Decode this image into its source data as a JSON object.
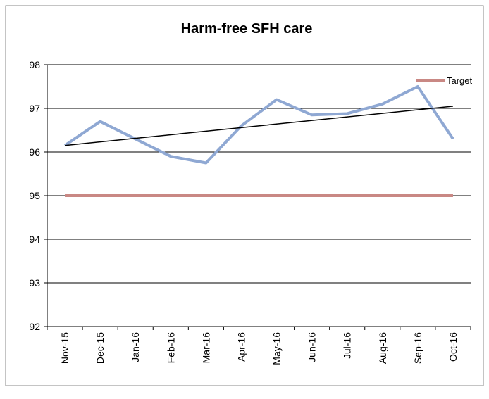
{
  "chart_data": {
    "type": "line",
    "title": "Harm-free SFH care",
    "categories": [
      "Nov-15",
      "Dec-15",
      "Jan-16",
      "Feb-16",
      "Mar-16",
      "Apr-16",
      "May-16",
      "Jun-16",
      "Jul-16",
      "Aug-16",
      "Sep-16",
      "Oct-16"
    ],
    "series": [
      {
        "color": "#8fa8d3",
        "values": [
          96.15,
          96.7,
          96.3,
          95.9,
          95.75,
          96.6,
          97.2,
          96.85,
          96.88,
          97.1,
          97.5,
          96.3
        ]
      },
      {
        "name": "Target",
        "color": "#c98884",
        "values": [
          95,
          95,
          95,
          95,
          95,
          95,
          95,
          95,
          95,
          95,
          95,
          95
        ]
      }
    ],
    "trendline": {
      "color": "#000000",
      "values": [
        96.15,
        97.05
      ]
    },
    "ylim": [
      92,
      98
    ],
    "yticks": [
      92,
      93,
      94,
      95,
      96,
      97,
      98
    ],
    "grid": true,
    "legend": "top-right"
  }
}
